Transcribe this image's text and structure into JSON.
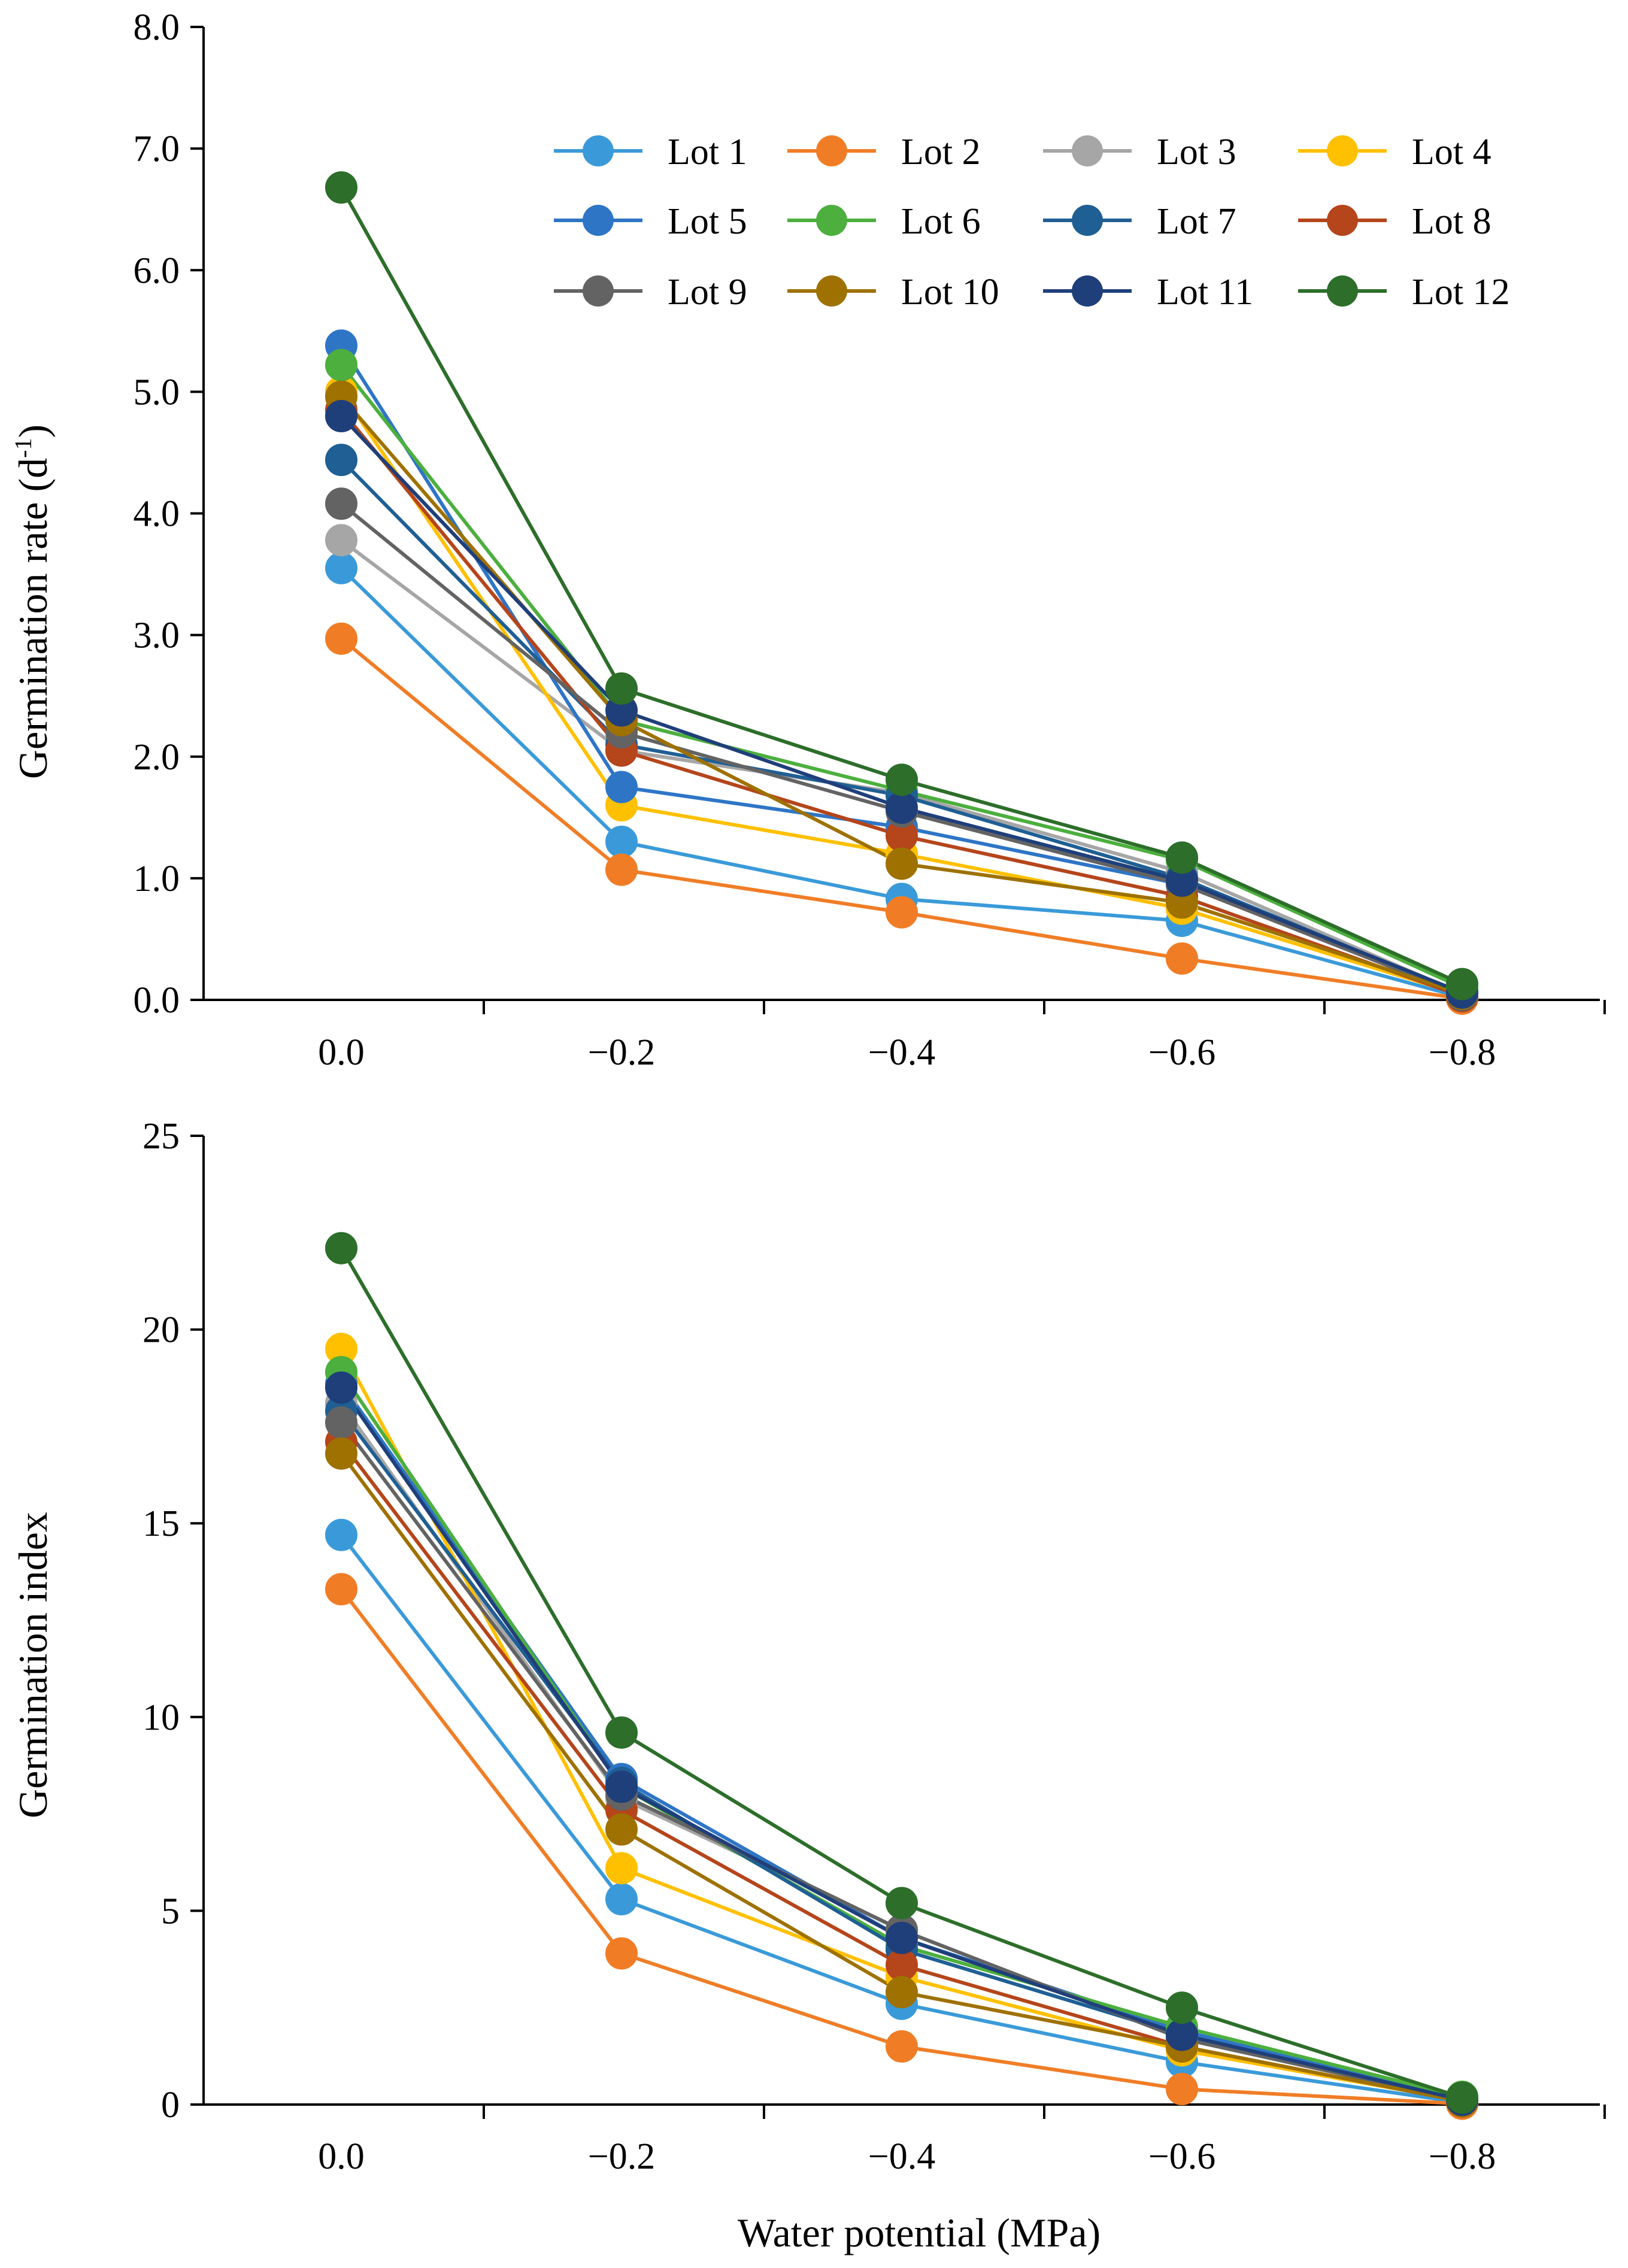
{
  "figure": {
    "xlabel": "Water potential (MPa)"
  },
  "legend": [
    {
      "label": "Lot 1",
      "color": "#3A9AD9"
    },
    {
      "label": "Lot 2",
      "color": "#F07D26"
    },
    {
      "label": "Lot 3",
      "color": "#A6A6A6"
    },
    {
      "label": "Lot 4",
      "color": "#FFC000"
    },
    {
      "label": "Lot 5",
      "color": "#2E75C6"
    },
    {
      "label": "Lot 6",
      "color": "#4CAF3E"
    },
    {
      "label": "Lot 7",
      "color": "#1F5F94"
    },
    {
      "label": "Lot 8",
      "color": "#B5451B"
    },
    {
      "label": "Lot 9",
      "color": "#636363"
    },
    {
      "label": "Lot 10",
      "color": "#9E7100"
    },
    {
      "label": "Lot 11",
      "color": "#1F3F7A"
    },
    {
      "label": "Lot 12",
      "color": "#2C6E2A"
    }
  ],
  "chart_data": [
    {
      "type": "line",
      "name": "germination-rate",
      "ylabel": "Germination  rate (d",
      "ylabel_sup": "-1",
      "ylabel_end": ")",
      "categories": [
        "0.0",
        "−0.2",
        "−0.4",
        "−0.6",
        "−0.8"
      ],
      "x": [
        0.0,
        -0.2,
        -0.4,
        -0.6,
        -0.8
      ],
      "ylim": [
        0,
        8
      ],
      "yticks": [
        0,
        1,
        2,
        3,
        4,
        5,
        6,
        7,
        8
      ],
      "ytick_labels": [
        "0.0",
        "1.0",
        "2.0",
        "3.0",
        "4.0",
        "5.0",
        "6.0",
        "7.0",
        "8.0"
      ],
      "series": [
        {
          "name": "Lot 1",
          "values": [
            3.55,
            1.3,
            0.83,
            0.65,
            0.02
          ]
        },
        {
          "name": "Lot 2",
          "values": [
            2.97,
            1.07,
            0.72,
            0.34,
            0.01
          ]
        },
        {
          "name": "Lot 3",
          "values": [
            3.78,
            2.05,
            1.7,
            1.05,
            0.05
          ]
        },
        {
          "name": "Lot 4",
          "values": [
            5.0,
            1.6,
            1.2,
            0.75,
            0.04
          ]
        },
        {
          "name": "Lot 5",
          "values": [
            5.38,
            1.75,
            1.42,
            0.95,
            0.06
          ]
        },
        {
          "name": "Lot 6",
          "values": [
            5.22,
            2.3,
            1.72,
            1.15,
            0.1
          ]
        },
        {
          "name": "Lot 7",
          "values": [
            4.44,
            2.1,
            1.68,
            1.0,
            0.05
          ]
        },
        {
          "name": "Lot 8",
          "values": [
            4.85,
            2.05,
            1.35,
            0.85,
            0.03
          ]
        },
        {
          "name": "Lot 9",
          "values": [
            4.08,
            2.2,
            1.55,
            0.95,
            0.04
          ]
        },
        {
          "name": "Lot 10",
          "values": [
            4.96,
            2.3,
            1.12,
            0.8,
            0.05
          ]
        },
        {
          "name": "Lot 11",
          "values": [
            4.8,
            2.38,
            1.58,
            0.98,
            0.06
          ]
        },
        {
          "name": "Lot 12",
          "values": [
            6.68,
            2.56,
            1.81,
            1.17,
            0.13
          ]
        }
      ]
    },
    {
      "type": "line",
      "name": "germination-index",
      "ylabel": "Germination  index",
      "xlabel": "Water potential (MPa)",
      "categories": [
        "0.0",
        "−0.2",
        "−0.4",
        "−0.6",
        "−0.8"
      ],
      "x": [
        0.0,
        -0.2,
        -0.4,
        -0.6,
        -0.8
      ],
      "ylim": [
        0,
        25
      ],
      "yticks": [
        0,
        5,
        10,
        15,
        20,
        25
      ],
      "ytick_labels": [
        "0",
        "5",
        "10",
        "15",
        "20",
        "25"
      ],
      "series": [
        {
          "name": "Lot 1",
          "values": [
            14.7,
            5.3,
            2.6,
            1.1,
            0.05
          ]
        },
        {
          "name": "Lot 2",
          "values": [
            13.3,
            3.9,
            1.5,
            0.4,
            0.02
          ]
        },
        {
          "name": "Lot 3",
          "values": [
            18.1,
            7.9,
            4.5,
            1.7,
            0.1
          ]
        },
        {
          "name": "Lot 4",
          "values": [
            19.5,
            6.1,
            3.3,
            1.4,
            0.1
          ]
        },
        {
          "name": "Lot 5",
          "values": [
            18.6,
            8.4,
            4.3,
            1.9,
            0.15
          ]
        },
        {
          "name": "Lot 6",
          "values": [
            18.9,
            8.2,
            4.1,
            2.0,
            0.2
          ]
        },
        {
          "name": "Lot 7",
          "values": [
            17.9,
            8.3,
            4.0,
            1.8,
            0.12
          ]
        },
        {
          "name": "Lot 8",
          "values": [
            17.1,
            7.6,
            3.6,
            1.5,
            0.08
          ]
        },
        {
          "name": "Lot 9",
          "values": [
            17.6,
            8.0,
            4.5,
            1.7,
            0.1
          ]
        },
        {
          "name": "Lot 10",
          "values": [
            16.8,
            7.1,
            2.9,
            1.5,
            0.08
          ]
        },
        {
          "name": "Lot 11",
          "values": [
            18.5,
            8.2,
            4.3,
            1.8,
            0.12
          ]
        },
        {
          "name": "Lot 12",
          "values": [
            22.1,
            9.6,
            5.2,
            2.5,
            0.18
          ]
        }
      ]
    }
  ]
}
